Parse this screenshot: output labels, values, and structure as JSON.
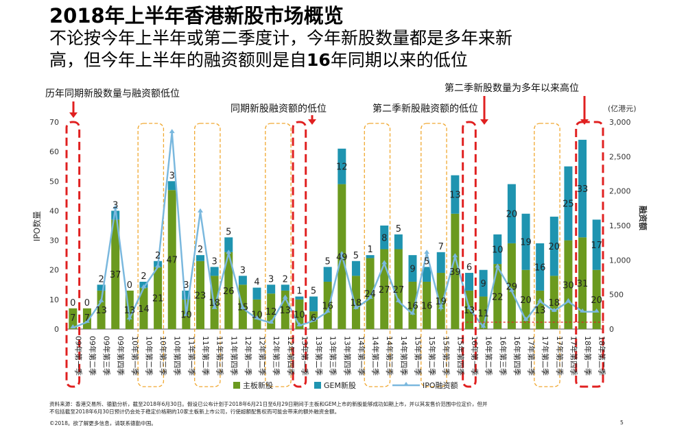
{
  "title": "2018年上半年香港新股市场概览",
  "subtitle_line1": "不论按今年上半年或第二季度计，今年新股数量都是多年来新",
  "subtitle_line2_a": "高，但今年上半年的融资额则是自",
  "subtitle_line2_num": "16",
  "subtitle_line2_b": "年同期以来的低位",
  "footnote_line1": "资料来源：香港交易所、德勤分析，截至2018年6月30日。假设已公布计划于2018年6月21日至6月29日期间于主板和GEM上市的新股能够成功如期上市，并以其发售价范围中位定价，但并",
  "footnote_line2": "不包括截至2018年6月30日预计仍会处于稳定价格期的10家主板新上市公司，行使超额配售权而可能会带来的额外融资金额。",
  "copyright": "©2018。欲了解更多信息，请联系德勤中国。",
  "page_number": "5",
  "chart_data": {
    "type": "bar",
    "ylabel": "IPO数量",
    "y2label": "融资额",
    "y2unit": "(亿港元)",
    "ylim": [
      0,
      70
    ],
    "y2lim": [
      0,
      3000
    ],
    "yticks": [
      "0",
      "10",
      "20",
      "30",
      "40",
      "50",
      "60",
      "70"
    ],
    "y2ticks": [
      "0",
      "500",
      "1,000",
      "1,500",
      "2,000",
      "2,500",
      "3,000"
    ],
    "categories": [
      "09年第一季",
      "09年第二季",
      "09年第三季",
      "09年第四季",
      "10年第一季",
      "10年第二季",
      "10年第三季",
      "10年第四季",
      "11年第一季",
      "11年第二季",
      "11年第三季",
      "11年第四季",
      "12年第一季",
      "12年第二季",
      "12年第三季",
      "12年第四季",
      "13年第一季",
      "13年第二季",
      "13年第三季",
      "13年第四季",
      "14年第一季",
      "14年第二季",
      "14年第三季",
      "14年第四季",
      "15年第一季",
      "15年第二季",
      "15年第三季",
      "15年第四季",
      "16年第一季",
      "16年第二季",
      "16年第三季",
      "16年第四季",
      "17年第一季",
      "17年第二季",
      "17年第三季",
      "17年第四季",
      "18年第一季",
      "18年第二季"
    ],
    "series": [
      {
        "name": "主板新股",
        "color": "#6b9a1f",
        "values": [
          7,
          7,
          13,
          37,
          13,
          14,
          21,
          47,
          10,
          23,
          18,
          26,
          15,
          10,
          12,
          13,
          10,
          6,
          16,
          49,
          18,
          24,
          27,
          27,
          16,
          16,
          19,
          39,
          13,
          11,
          22,
          29,
          20,
          13,
          18,
          30,
          31,
          20
        ]
      },
      {
        "name": "GEM新股",
        "color": "#1f94b0",
        "values": [
          0,
          0,
          2,
          3,
          0,
          2,
          2,
          3,
          3,
          2,
          3,
          5,
          3,
          4,
          3,
          2,
          1,
          5,
          5,
          12,
          5,
          1,
          8,
          5,
          9,
          5,
          7,
          13,
          6,
          9,
          10,
          20,
          19,
          16,
          20,
          25,
          33,
          17
        ]
      },
      {
        "name": "IPO融资额",
        "color": "#7ab8de",
        "values": [
          20,
          100,
          400,
          1750,
          150,
          600,
          900,
          2850,
          200,
          1700,
          300,
          1100,
          300,
          150,
          90,
          450,
          50,
          120,
          250,
          1080,
          300,
          450,
          950,
          400,
          220,
          1100,
          300,
          1050,
          300,
          30,
          900,
          550,
          130,
          400,
          260,
          400,
          250,
          250
        ]
      }
    ],
    "annotations": [
      {
        "text": "历年同期新股数量与融资额低位"
      },
      {
        "text": "同期新股融资额的低位"
      },
      {
        "text": "第二季新股融资额的低位"
      },
      {
        "text": "第二季新股数量为多年以来高位"
      }
    ]
  }
}
